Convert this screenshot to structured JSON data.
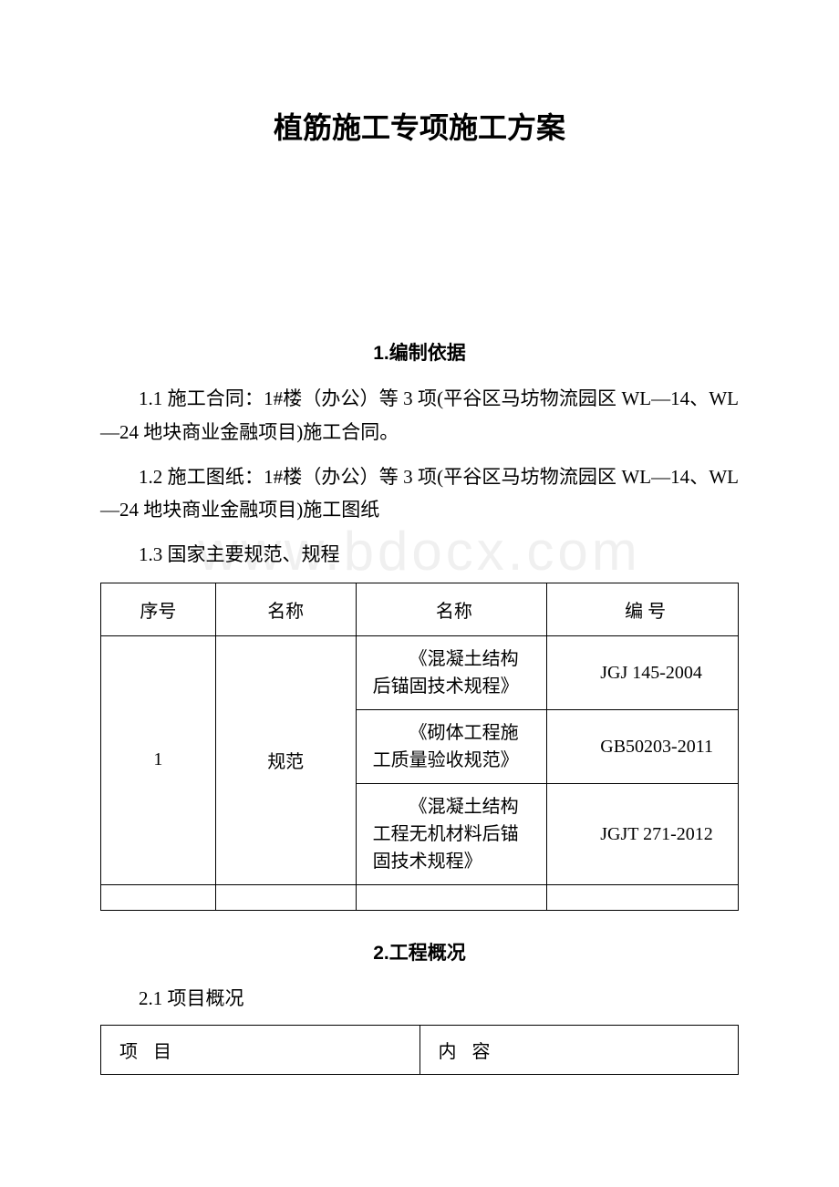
{
  "watermark": "www.bdocx.com",
  "doc_title": "植筋施工专项施工方案",
  "section1": {
    "heading": "1.编制依据",
    "para1": "1.1 施工合同：1#楼（办公）等 3 项(平谷区马坊物流园区 WL—14、WL—24 地块商业金融项目)施工合同。",
    "para2": "1.2 施工图纸：1#楼（办公）等 3 项(平谷区马坊物流园区 WL—14、WL—24 地块商业金融项目)施工图纸",
    "para3": "1.3 国家主要规范、规程"
  },
  "table1": {
    "headers": {
      "col1": "序号",
      "col2": "名称",
      "col3": "名称",
      "col4": "编 号"
    },
    "row_number": "1",
    "row_category": "规范",
    "rows": [
      {
        "name": "《混凝土结构后锚固技术规程》",
        "code": "JGJ 145-2004"
      },
      {
        "name": "《砌体工程施工质量验收规范》",
        "code": "GB50203-2011"
      },
      {
        "name": "《混凝土结构工程无机材料后锚固技术规程》",
        "code": "JGJT 271-2012"
      }
    ]
  },
  "section2": {
    "heading": "2.工程概况",
    "subheading": "2.1 项目概况"
  },
  "table2": {
    "headers": {
      "col1": "项 目",
      "col2": "内 容"
    }
  }
}
